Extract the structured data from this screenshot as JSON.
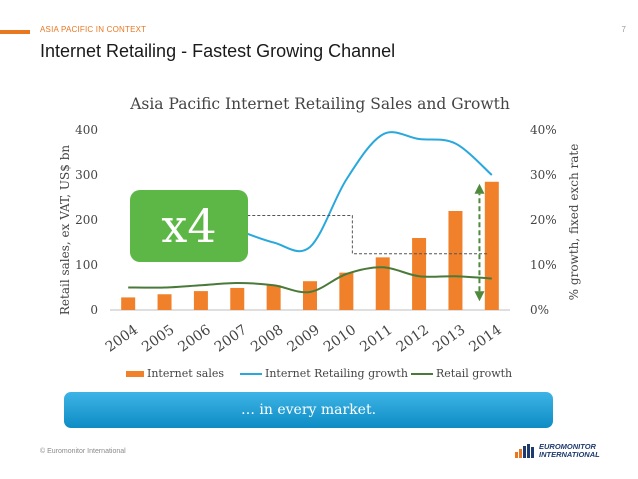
{
  "slide": {
    "section_label": "ASIA PACIFIC IN CONTEXT",
    "page_number": "7",
    "title": "Internet Retailing - Fastest Growing Channel",
    "callout": "x4",
    "banner": "… in every market.",
    "footer": "© Euromonitor International",
    "logo_line1": "EUROMONITOR",
    "logo_line2": "INTERNATIONAL"
  },
  "colors": {
    "accent": "#e87722",
    "bars": "#f0812a",
    "internet_growth_line": "#29a8dc",
    "retail_growth_line": "#4a7a3a",
    "callout": "#5cb746",
    "banner": "#1a9ad6"
  },
  "chart_data": {
    "type": "bar",
    "title": "Asia Pacific Internet Retailing Sales and Growth",
    "categories": [
      "2004",
      "2005",
      "2006",
      "2007",
      "2008",
      "2009",
      "2010",
      "2011",
      "2012",
      "2013",
      "2014"
    ],
    "ylabel": "Retail sales, ex VAT, US$ bn",
    "y2label": "% growth, fixed exch rate",
    "ylim": [
      0,
      400
    ],
    "y2lim": [
      0,
      40
    ],
    "yticks": [
      "0",
      "100",
      "200",
      "300",
      "400"
    ],
    "y2ticks": [
      "0%",
      "10%",
      "20%",
      "30%",
      "40%"
    ],
    "grid": false,
    "legend_position": "bottom",
    "series": [
      {
        "name": "Internet sales",
        "type": "bar",
        "axis": "left",
        "values": [
          28,
          35,
          42,
          49,
          55,
          64,
          83,
          117,
          160,
          220,
          285
        ]
      },
      {
        "name": "Internet Retailing growth",
        "type": "line",
        "axis": "right",
        "smooth": true,
        "values": [
          null,
          null,
          null,
          17.8,
          15.0,
          14.0,
          29.0,
          39.0,
          38.0,
          37.0,
          30.0
        ]
      },
      {
        "name": "Retail growth",
        "type": "line",
        "axis": "right",
        "smooth": true,
        "values": [
          5.0,
          5.0,
          5.5,
          6.0,
          5.5,
          4.0,
          8.0,
          9.5,
          7.5,
          7.5,
          7.0
        ]
      }
    ]
  }
}
